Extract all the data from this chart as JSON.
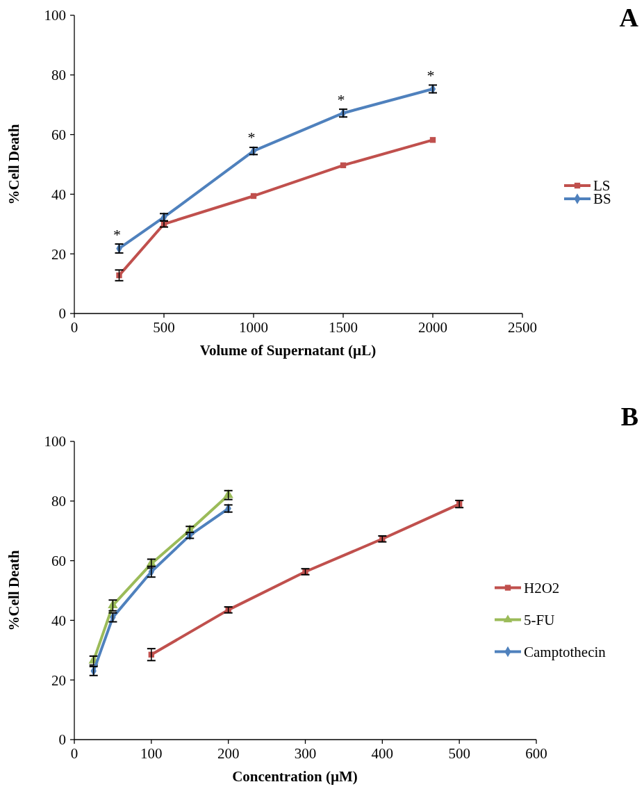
{
  "chart_data": [
    {
      "type": "line",
      "xlabel": "Volume of Supernatant (µL)",
      "ylabel": "%Cell Death",
      "xlim": [
        0,
        2500
      ],
      "xticks": [
        0,
        500,
        1000,
        1500,
        2000,
        2500
      ],
      "ylim": [
        0,
        100
      ],
      "yticks": [
        0,
        20,
        40,
        60,
        80,
        100
      ],
      "legend": "right",
      "grid": false,
      "line_style": "solid",
      "x": [
        250,
        500,
        1000,
        1500,
        2000
      ],
      "series": [
        {
          "name": "LS",
          "color": "#c0504d",
          "marker": "square",
          "values": [
            12.8,
            30,
            39.4,
            49.7,
            58.2
          ],
          "errors": [
            1.8,
            1,
            null,
            null,
            null
          ]
        },
        {
          "name": "BS",
          "color": "#4f81bd",
          "marker": "diamond",
          "values": [
            21.8,
            32.3,
            54.5,
            67.2,
            75.3
          ],
          "errors": [
            1.5,
            1.2,
            1.2,
            1.3,
            1.3
          ]
        }
      ],
      "annotations": [
        "A",
        {
          "text": "*",
          "x": 250,
          "y": 21.8
        },
        {
          "text": "*",
          "x": 1000,
          "y": 54.5
        },
        {
          "text": "*",
          "x": 1500,
          "y": 67.2
        },
        {
          "text": "*",
          "x": 2000,
          "y": 75.3
        }
      ]
    },
    {
      "type": "line",
      "xlabel": "Concentration (µM)",
      "ylabel": "%Cell Death",
      "xlim": [
        0,
        600
      ],
      "xticks": [
        0,
        100,
        200,
        300,
        400,
        500,
        600
      ],
      "ylim": [
        0,
        100
      ],
      "yticks": [
        0,
        20,
        40,
        60,
        80,
        100
      ],
      "legend": "right",
      "grid": false,
      "line_style": "solid",
      "series": [
        {
          "name": "H2O2",
          "color": "#c0504d",
          "marker": "square",
          "x": [
            100,
            200,
            300,
            400,
            500
          ],
          "values": [
            28.5,
            43.5,
            56.3,
            67.3,
            79
          ],
          "errors": [
            2,
            1,
            1,
            1,
            1.2
          ]
        },
        {
          "name": "5-FU",
          "color": "#9bbb59",
          "marker": "triangle",
          "x": [
            25,
            50,
            100,
            150,
            200
          ],
          "values": [
            26.5,
            45,
            59,
            70.2,
            82
          ],
          "errors": [
            1.5,
            1.8,
            1.5,
            1.3,
            1.5
          ]
        },
        {
          "name": "Camptothecin",
          "color": "#4f81bd",
          "marker": "diamond",
          "x": [
            25,
            50,
            100,
            150,
            200
          ],
          "values": [
            23,
            41,
            56.3,
            68.5,
            77.5
          ],
          "errors": [
            1.5,
            1.5,
            1.8,
            1,
            1.2
          ]
        }
      ],
      "annotations": [
        "B"
      ]
    }
  ]
}
